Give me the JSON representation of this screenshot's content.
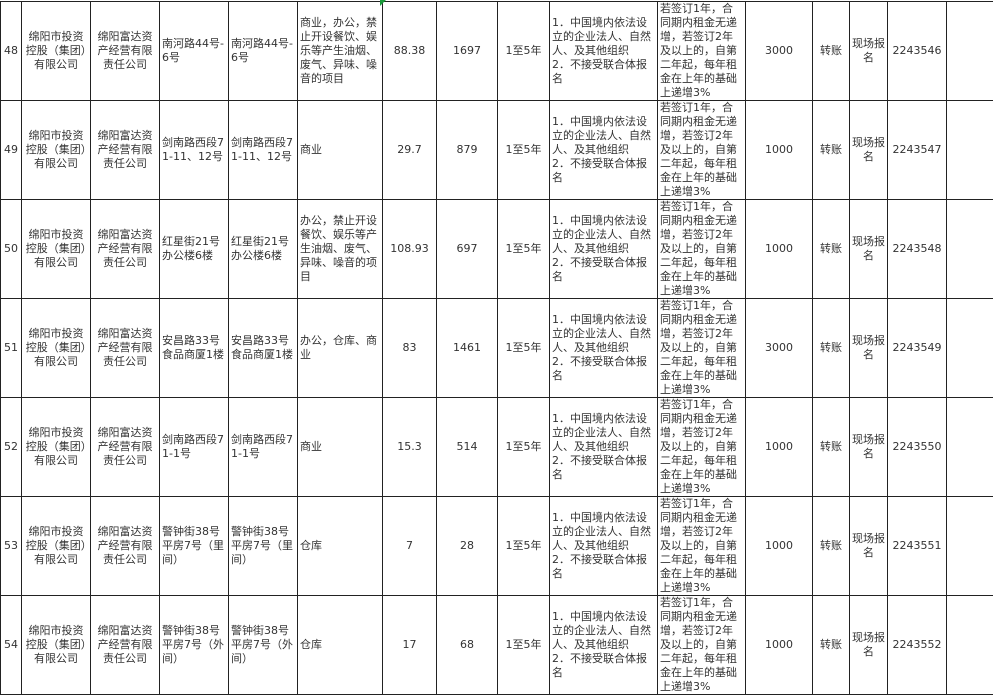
{
  "rows": [
    {
      "no": "48",
      "owner": "绵阳市投资控股（集团）有限公司",
      "operator": "绵阳富达资产经营有限责任公司",
      "address": "南河路44号-6号",
      "location": "南河路44号-6号",
      "use": "商业，办公，禁止开设餐饮、娱乐等产生油烟、废气、异味、噪音的项目",
      "area": "88.38",
      "rent": "1697",
      "term": "1至5年",
      "eligibility": "1．中国境内依法设立的企业法人、自然人、及其他组织\n2．不接受联合体报名",
      "terms": "若签订1年，合同期内租金无递增，若签订2年及以上的，自第二年起，每年租金在上年的基础上递增3%",
      "deposit": "3000",
      "payment": "转账",
      "method": "现场报名",
      "code": "2243546"
    },
    {
      "no": "49",
      "owner": "绵阳市投资控股（集团）有限公司",
      "operator": "绵阳富达资产经营有限责任公司",
      "address": "剑南路西段71-11、12号",
      "location": "剑南路西段71-11、12号",
      "use": "商业",
      "area": "29.7",
      "rent": "879",
      "term": "1至5年",
      "eligibility": "1．中国境内依法设立的企业法人、自然人、及其他组织\n2．不接受联合体报名",
      "terms": "若签订1年，合同期内租金无递增，若签订2年及以上的，自第二年起，每年租金在上年的基础上递增3%",
      "deposit": "1000",
      "payment": "转账",
      "method": "现场报名",
      "code": "2243547"
    },
    {
      "no": "50",
      "owner": "绵阳市投资控股（集团）有限公司",
      "operator": "绵阳富达资产经营有限责任公司",
      "address": "红星街21号办公楼6楼",
      "location": "红星街21号办公楼6楼",
      "use": "办公，禁止开设餐饮、娱乐等产生油烟、废气、异味、噪音的项目",
      "area": "108.93",
      "rent": "697",
      "term": "1至5年",
      "eligibility": "1．中国境内依法设立的企业法人、自然人、及其他组织\n2．不接受联合体报名",
      "terms": "若签订1年，合同期内租金无递增，若签订2年及以上的，自第二年起，每年租金在上年的基础上递增3%",
      "deposit": "1000",
      "payment": "转账",
      "method": "现场报名",
      "code": "2243548"
    },
    {
      "no": "51",
      "owner": "绵阳市投资控股（集团）有限公司",
      "operator": "绵阳富达资产经营有限责任公司",
      "address": "安昌路33号食品商厦1楼",
      "location": "安昌路33号食品商厦1楼",
      "use": "办公，仓库、商业",
      "area": "83",
      "rent": "1461",
      "term": "1至5年",
      "eligibility": "1．中国境内依法设立的企业法人、自然人、及其他组织\n2．不接受联合体报名",
      "terms": "若签订1年，合同期内租金无递增，若签订2年及以上的，自第二年起，每年租金在上年的基础上递增3%",
      "deposit": "3000",
      "payment": "转账",
      "method": "现场报名",
      "code": "2243549"
    },
    {
      "no": "52",
      "owner": "绵阳市投资控股（集团）有限公司",
      "operator": "绵阳富达资产经营有限责任公司",
      "address": "剑南路西段71-1号",
      "location": "剑南路西段71-1号",
      "use": "商业",
      "area": "15.3",
      "rent": "514",
      "term": "1至5年",
      "eligibility": "1．中国境内依法设立的企业法人、自然人、及其他组织\n2．不接受联合体报名",
      "terms": "若签订1年，合同期内租金无递增，若签订2年及以上的，自第二年起，每年租金在上年的基础上递增3%",
      "deposit": "1000",
      "payment": "转账",
      "method": "现场报名",
      "code": "2243550"
    },
    {
      "no": "53",
      "owner": "绵阳市投资控股（集团）有限公司",
      "operator": "绵阳富达资产经营有限责任公司",
      "address": "警钟街38号平房7号（里间）",
      "location": "警钟街38号平房7号（里间）",
      "use": "仓库",
      "area": "7",
      "rent": "28",
      "term": "1至5年",
      "eligibility": "1．中国境内依法设立的企业法人、自然人、及其他组织\n2．不接受联合体报名",
      "terms": "若签订1年，合同期内租金无递增，若签订2年及以上的，自第二年起，每年租金在上年的基础上递增3%",
      "deposit": "1000",
      "payment": "转账",
      "method": "现场报名",
      "code": "2243551"
    },
    {
      "no": "54",
      "owner": "绵阳市投资控股（集团）有限公司",
      "operator": "绵阳富达资产经营有限责任公司",
      "address": "警钟街38号平房7号（外间）",
      "location": "警钟街38号平房7号（外间）",
      "use": "仓库",
      "area": "17",
      "rent": "68",
      "term": "1至5年",
      "eligibility": "1．中国境内依法设立的企业法人、自然人、及其他组织\n2．不接受联合体报名",
      "terms": "若签订1年，合同期内租金无递增，若签订2年及以上的，自第二年起，每年租金在上年的基础上递增3%",
      "deposit": "1000",
      "payment": "转账",
      "method": "现场报名",
      "code": "2243552"
    }
  ]
}
